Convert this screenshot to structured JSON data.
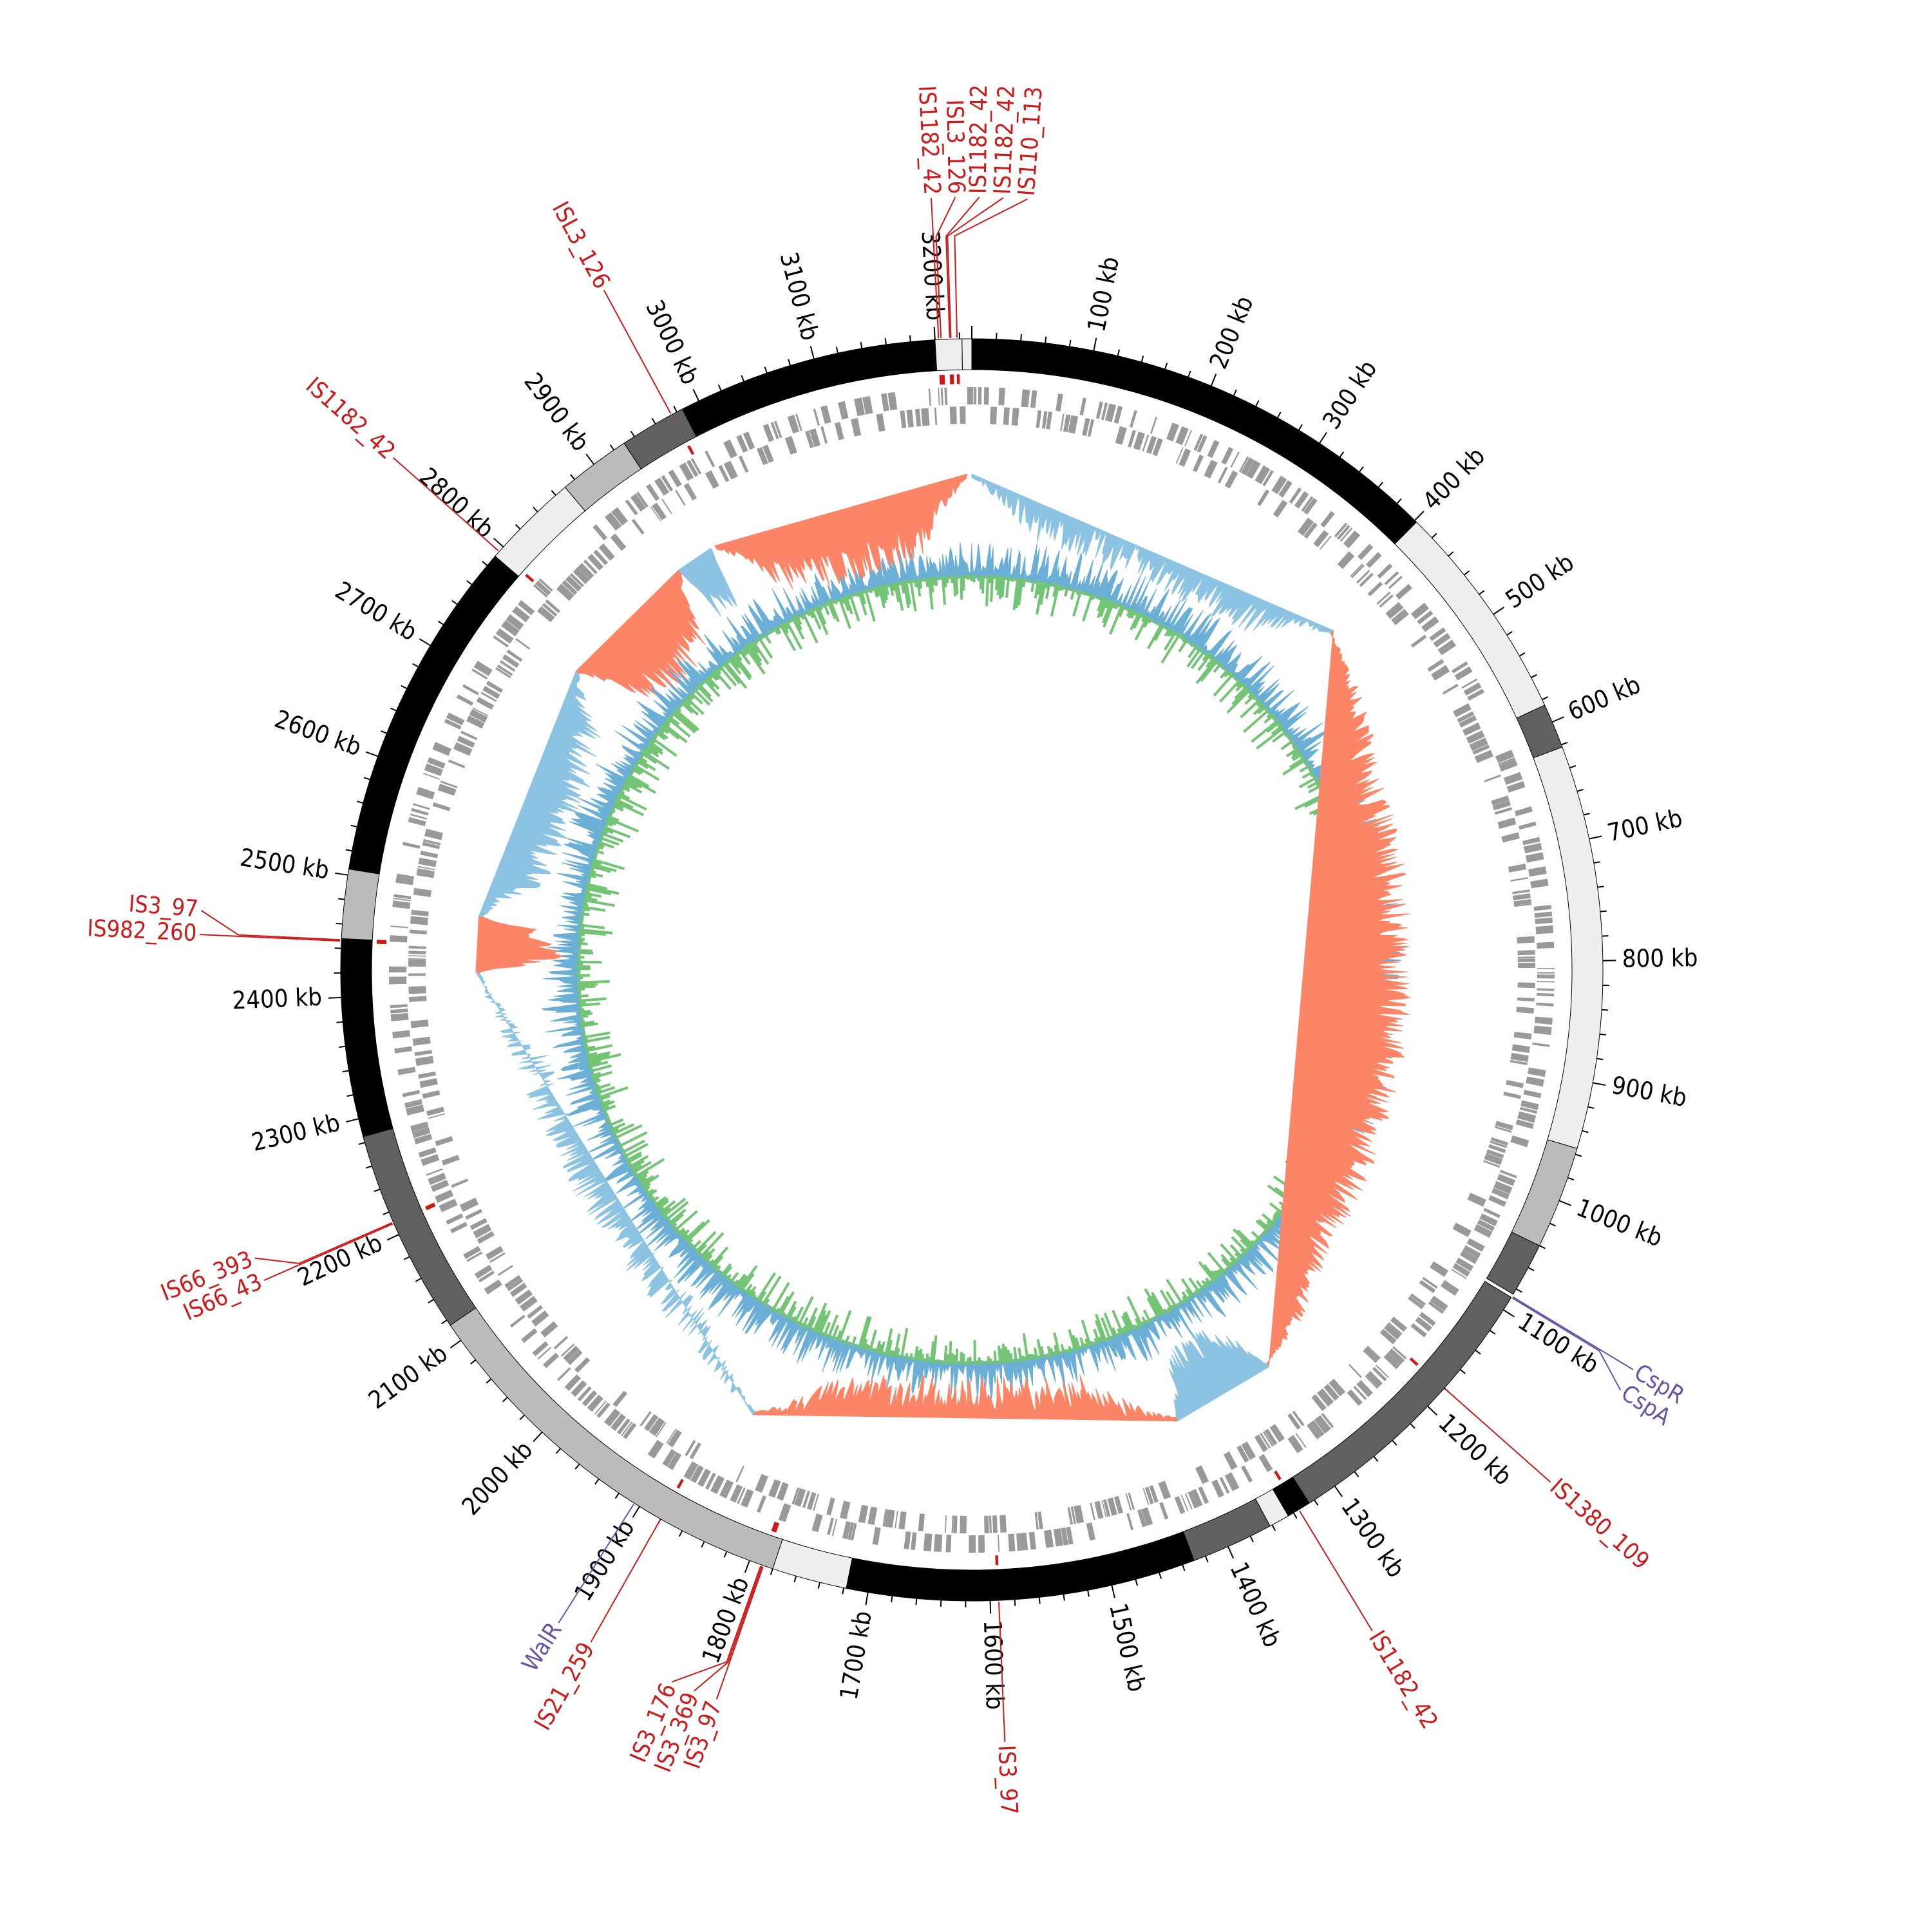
{
  "chart_data": {
    "type": "circular-genome-map",
    "genome_length_kb": 3230,
    "tick_labels": [
      "100 kb",
      "200 kb",
      "300 kb",
      "400 kb",
      "500 kb",
      "600 kb",
      "700 kb",
      "800 kb",
      "900 kb",
      "1000 kb",
      "1100 kb",
      "1200 kb",
      "1300 kb",
      "1400 kb",
      "1500 kb",
      "1600 kb",
      "1700 kb",
      "1800 kb",
      "1900 kb",
      "2000 kb",
      "2100 kb",
      "2200 kb",
      "2300 kb",
      "2400 kb",
      "2500 kb",
      "2600 kb",
      "2700 kb",
      "2800 kb",
      "2900 kb",
      "3000 kb",
      "3100 kb",
      "3200 kb"
    ],
    "tick_values_kb": [
      100,
      200,
      300,
      400,
      500,
      600,
      700,
      800,
      900,
      1000,
      1100,
      1200,
      1300,
      1400,
      1500,
      1600,
      1700,
      1800,
      1900,
      2000,
      2100,
      2200,
      2300,
      2400,
      2500,
      2600,
      2700,
      2800,
      2900,
      3000,
      3100,
      3200
    ],
    "bands": [
      {
        "start": 0,
        "end": 8,
        "color": "#000000"
      },
      {
        "start": 8,
        "end": 402,
        "color": "#000000"
      },
      {
        "start": 402,
        "end": 585,
        "color": "#eeeeee"
      },
      {
        "start": 585,
        "end": 622,
        "color": "#606060"
      },
      {
        "start": 622,
        "end": 955,
        "color": "#eeeeee"
      },
      {
        "start": 955,
        "end": 1040,
        "color": "#bbbbbb"
      },
      {
        "start": 1040,
        "end": 1085,
        "color": "#606060"
      },
      {
        "start": 1088,
        "end": 1325,
        "color": "#606060"
      },
      {
        "start": 1325,
        "end": 1345,
        "color": "#000000"
      },
      {
        "start": 1345,
        "end": 1362,
        "color": "#eeeeee"
      },
      {
        "start": 1362,
        "end": 1430,
        "color": "#606060"
      },
      {
        "start": 1430,
        "end": 1718,
        "color": "#000000"
      },
      {
        "start": 1718,
        "end": 1780,
        "color": "#eeeeee"
      },
      {
        "start": 1780,
        "end": 2115,
        "color": "#bbbbbb"
      },
      {
        "start": 2115,
        "end": 2285,
        "color": "#606060"
      },
      {
        "start": 2285,
        "end": 2448,
        "color": "#000000"
      },
      {
        "start": 2448,
        "end": 2505,
        "color": "#bbbbbb"
      },
      {
        "start": 2505,
        "end": 2790,
        "color": "#000000"
      },
      {
        "start": 2790,
        "end": 2870,
        "color": "#eeeeee"
      },
      {
        "start": 2870,
        "end": 2930,
        "color": "#bbbbbb"
      },
      {
        "start": 2930,
        "end": 2985,
        "color": "#606060"
      },
      {
        "start": 2985,
        "end": 3200,
        "color": "#000000"
      },
      {
        "start": 3200,
        "end": 3222,
        "color": "#eeeeee"
      },
      {
        "start": 3222,
        "end": 3230,
        "color": "#eeeeee"
      }
    ],
    "mobile_elements": [
      {
        "label": "IS1182_42",
        "kb": 3203
      },
      {
        "label": "ISL3_126",
        "kb": 3205
      },
      {
        "label": "IS1182_42",
        "kb": 3212
      },
      {
        "label": "IS1182_42",
        "kb": 3213
      },
      {
        "label": "IS110_113",
        "kb": 3218
      },
      {
        "label": "ISL3_126",
        "kb": 2975
      },
      {
        "label": "IS1182_42",
        "kb": 2795
      },
      {
        "label": "IS982_260",
        "kb": 2446
      },
      {
        "label": "IS3_97",
        "kb": 2447
      },
      {
        "label": "IS66_43",
        "kb": 2210
      },
      {
        "label": "IS66_393",
        "kb": 2211
      },
      {
        "label": "IS21_259",
        "kb": 1880
      },
      {
        "label": "IS3_176",
        "kb": 1790
      },
      {
        "label": "IS3_369",
        "kb": 1789
      },
      {
        "label": "IS3_97",
        "kb": 1788
      },
      {
        "label": "IS3_97",
        "kb": 1593
      },
      {
        "label": "IS1182_42",
        "kb": 1335
      },
      {
        "label": "IS1380_109",
        "kb": 1180
      }
    ],
    "genes_of_interest": [
      {
        "label": "CspR",
        "kb": 1087
      },
      {
        "label": "CspA",
        "kb": 1088
      },
      {
        "label": "WalR",
        "kb": 1905
      }
    ],
    "skew_regions": [
      {
        "start": 0,
        "end": 420,
        "sign": "negative"
      },
      {
        "start": 420,
        "end": 1285,
        "sign": "positive"
      },
      {
        "start": 1285,
        "end": 1395,
        "sign": "negative"
      },
      {
        "start": 1395,
        "end": 1850,
        "sign": "positive"
      },
      {
        "start": 1850,
        "end": 2420,
        "sign": "negative"
      },
      {
        "start": 2420,
        "end": 2478,
        "sign": "positive"
      },
      {
        "start": 2478,
        "end": 2755,
        "sign": "negative"
      },
      {
        "start": 2755,
        "end": 2905,
        "sign": "positive"
      },
      {
        "start": 2905,
        "end": 2945,
        "sign": "negative"
      },
      {
        "start": 2950,
        "end": 3225,
        "sign": "positive"
      }
    ],
    "inner_ring_gaps_kb": [
      18,
      1160,
      1370,
      1665,
      1705,
      2060,
      2090,
      2700
    ],
    "colors": {
      "skew_positive": "#fb8566",
      "skew_negative": "#8cc3e3",
      "gc_above": "#6baed6",
      "gc_below": "#74c476",
      "inner_ring": "#08407e",
      "genes": "#999999",
      "mobile_element": "#cc1a1a",
      "gene_of_interest": "#6a51a3"
    }
  }
}
